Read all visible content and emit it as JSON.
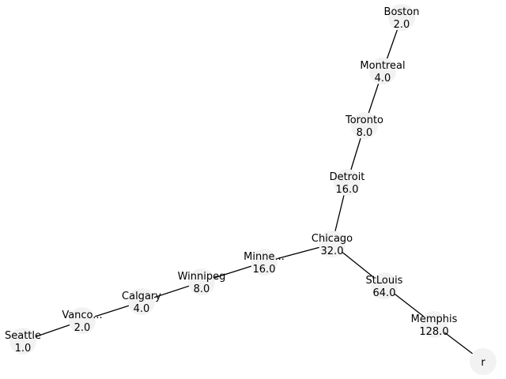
{
  "graph": {
    "colors": {
      "node_fill": "#f2f2f2",
      "edge": "#000000",
      "text": "#000000"
    },
    "nodes": [
      {
        "id": "Boston",
        "label": "Boston",
        "value": "2.0"
      },
      {
        "id": "Montreal",
        "label": "Montreal",
        "value": "4.0"
      },
      {
        "id": "Toronto",
        "label": "Toronto",
        "value": "8.0"
      },
      {
        "id": "Detroit",
        "label": "Detroit",
        "value": "16.0"
      },
      {
        "id": "Chicago",
        "label": "Chicago",
        "value": "32.0"
      },
      {
        "id": "StLouis",
        "label": "StLouis",
        "value": "64.0"
      },
      {
        "id": "Memphis",
        "label": "Memphis",
        "value": "128.0"
      },
      {
        "id": "r",
        "label": "r",
        "value": ""
      },
      {
        "id": "Minneapolis",
        "label": "Minne...",
        "value": "16.0"
      },
      {
        "id": "Winnipeg",
        "label": "Winnipeg",
        "value": "8.0"
      },
      {
        "id": "Calgary",
        "label": "Calgary",
        "value": "4.0"
      },
      {
        "id": "Vancouver",
        "label": "Vanco...",
        "value": "2.0"
      },
      {
        "id": "Seattle",
        "label": "Seattle",
        "value": "1.0"
      }
    ],
    "edges": [
      {
        "source": "Boston",
        "target": "Montreal"
      },
      {
        "source": "Montreal",
        "target": "Toronto"
      },
      {
        "source": "Toronto",
        "target": "Detroit"
      },
      {
        "source": "Detroit",
        "target": "Chicago"
      },
      {
        "source": "Chicago",
        "target": "StLouis"
      },
      {
        "source": "StLouis",
        "target": "Memphis"
      },
      {
        "source": "Memphis",
        "target": "r"
      },
      {
        "source": "Chicago",
        "target": "Minneapolis"
      },
      {
        "source": "Minneapolis",
        "target": "Winnipeg"
      },
      {
        "source": "Winnipeg",
        "target": "Calgary"
      },
      {
        "source": "Calgary",
        "target": "Vancouver"
      },
      {
        "source": "Vancouver",
        "target": "Seattle"
      }
    ]
  }
}
